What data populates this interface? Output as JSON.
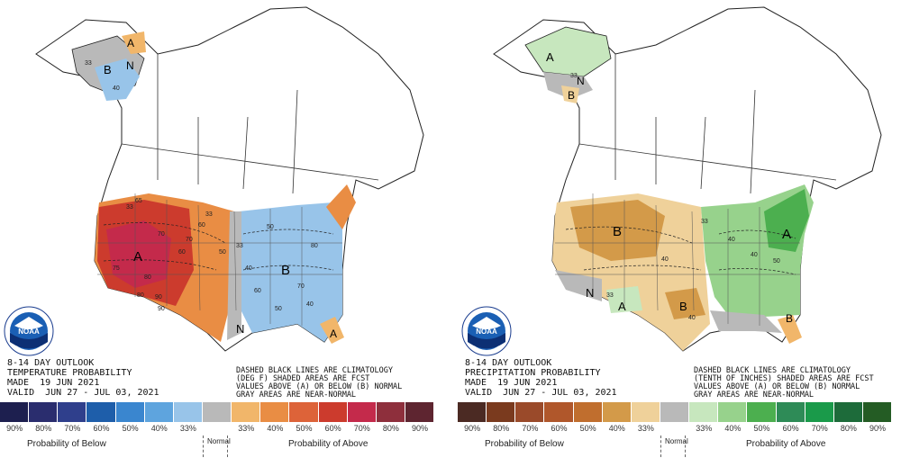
{
  "temperature": {
    "title_lines": [
      "8-14 DAY OUTLOOK",
      "TEMPERATURE PROBABILITY",
      "MADE  19 JUN 2021",
      "VALID  JUN 27 - JUL 03, 2021"
    ],
    "notes": [
      "DASHED BLACK LINES ARE CLIMATOLOGY",
      "(DEG F) SHADED AREAS ARE FCST",
      "VALUES ABOVE (A) OR BELOW (B) NORMAL",
      "GRAY AREAS ARE NEAR-NORMAL"
    ],
    "map_labels": [
      {
        "text": "A",
        "kind": "above"
      },
      {
        "text": "B",
        "kind": "below"
      },
      {
        "text": "N",
        "kind": "normal"
      },
      {
        "text": "A",
        "kind": "above"
      },
      {
        "text": "B",
        "kind": "below"
      },
      {
        "text": "N",
        "kind": "normal"
      },
      {
        "text": "A",
        "kind": "above"
      }
    ],
    "contour_labels": [
      "33",
      "40",
      "33",
      "50",
      "60",
      "70",
      "80",
      "90",
      "33",
      "40",
      "50",
      "60",
      "70",
      "80",
      "40",
      "50",
      "33",
      "65",
      "75",
      "80",
      "60",
      "70",
      "90"
    ],
    "scale_colors": [
      "#1d1f4f",
      "#2a2d6e",
      "#2f3f8c",
      "#1e5eaa",
      "#3a86cf",
      "#5ea4de",
      "#98c4e9",
      "#b9b9b9",
      "#f1b66a",
      "#e98d44",
      "#dd6339",
      "#cc3b2d",
      "#c42a4b",
      "#8e2f3c",
      "#5e2530"
    ],
    "scale_ticks": [
      "90%",
      "80%",
      "70%",
      "60%",
      "50%",
      "40%",
      "33%",
      "",
      "33%",
      "40%",
      "50%",
      "60%",
      "70%",
      "80%",
      "90%"
    ],
    "caption_below": "Probability of Below",
    "caption_normal": "Normal",
    "caption_above": "Probability of Above"
  },
  "precipitation": {
    "title_lines": [
      "8-14 DAY OUTLOOK",
      "PRECIPITATION PROBABILITY",
      "MADE  19 JUN 2021",
      "VALID  JUN 27 - JUL 03, 2021"
    ],
    "notes": [
      "DASHED BLACK LINES ARE CLIMATOLOGY",
      "(TENTH OF INCHES) SHADED AREAS ARE FCST",
      "VALUES ABOVE (A) OR BELOW (B) NORMAL",
      "GRAY AREAS ARE NEAR-NORMAL"
    ],
    "map_labels": [
      {
        "text": "A",
        "kind": "above"
      },
      {
        "text": "B",
        "kind": "below"
      },
      {
        "text": "N",
        "kind": "normal"
      },
      {
        "text": "B",
        "kind": "below"
      },
      {
        "text": "A",
        "kind": "above"
      },
      {
        "text": "B",
        "kind": "below"
      },
      {
        "text": "N",
        "kind": "normal"
      },
      {
        "text": "A",
        "kind": "above"
      },
      {
        "text": "B",
        "kind": "below"
      }
    ],
    "contour_labels": [
      "33",
      "33",
      "40",
      "33",
      "40",
      "40",
      "40",
      "50"
    ],
    "scale_colors": [
      "#4b2a23",
      "#7a3a1e",
      "#9a4a2a",
      "#b0572b",
      "#c06e2e",
      "#d39a49",
      "#efd19a",
      "#b9b9b9",
      "#c7e7be",
      "#97d28c",
      "#4caf4f",
      "#2e8b57",
      "#1a9a4a",
      "#1d6b3a",
      "#245c24"
    ],
    "scale_ticks": [
      "90%",
      "80%",
      "70%",
      "60%",
      "50%",
      "40%",
      "33%",
      "",
      "33%",
      "40%",
      "50%",
      "60%",
      "70%",
      "80%",
      "90%"
    ],
    "caption_below": "Probability of Below",
    "caption_normal": "Normal",
    "caption_above": "Probability of Above"
  },
  "logo_text": "NOAA"
}
